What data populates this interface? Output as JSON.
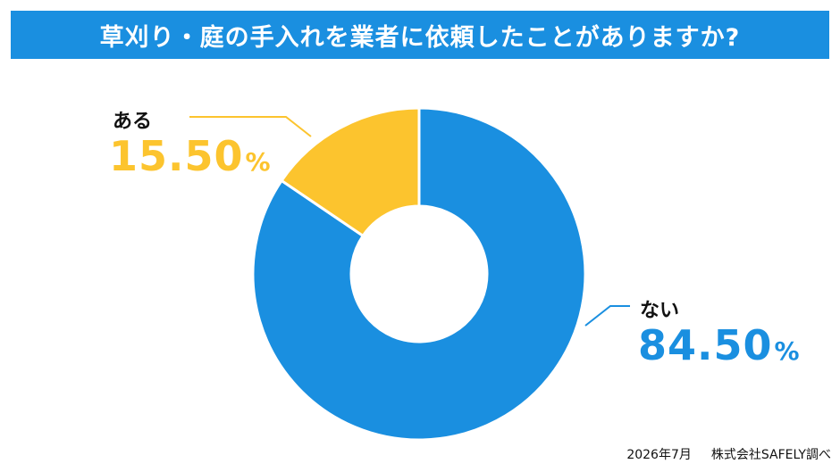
{
  "chart_data": {
    "type": "pie",
    "title": "草刈り・庭の手入れを業者に依頼したことがありますか?",
    "categories": [
      "ない",
      "ある"
    ],
    "values": [
      84.5,
      15.5
    ],
    "value_labels": [
      "84.50",
      "15.50"
    ],
    "unit": "%",
    "colors": [
      "#1a8fe0",
      "#fcc42e"
    ],
    "legend": "none"
  },
  "footer": {
    "date": "2026年7月",
    "source": "株式会社SAFELY調べ"
  }
}
